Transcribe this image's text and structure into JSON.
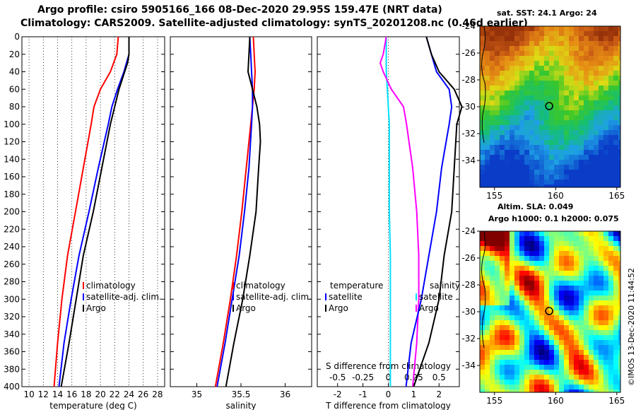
{
  "header": {
    "line1": "Argo profile: csiro 5905166_166 08-Dec-2020 29.95S 159.47E (NRT data)",
    "line2": "Climatology: CARS2009. Satellite-adjusted climatology: synTS_20201208.nc (0.46d earlier)"
  },
  "credit": "©IMOS 13-Dec-2020 11:44:52",
  "colors": {
    "climatology": "#ff0000",
    "satellite": "#0000ff",
    "argo": "#000000",
    "t_diff": "#ff00ff",
    "s_diff": "#00e0ff"
  },
  "maps": {
    "sst": {
      "title": "sat. SST: 24.1 Argo: 24",
      "colormap": "temperature",
      "marker": {
        "lon": 159.47,
        "lat": -29.95
      }
    },
    "sla": {
      "title1": "Altim. SLA: 0.049",
      "title2": "Argo h1000: 0.1 h2000: 0.075",
      "colormap": "jet",
      "marker": {
        "lon": 159.47,
        "lat": -29.95
      }
    },
    "lat_ticks": [
      "-24",
      "-26",
      "-28",
      "-30",
      "-32",
      "-34"
    ],
    "lon_ticks": [
      "155",
      "160",
      "165"
    ]
  },
  "chart_data": [
    {
      "type": "line",
      "name": "temperature",
      "xlabel": "temperature (deg C)",
      "ylabel": "",
      "xlim": [
        9,
        29
      ],
      "ylim": [
        400,
        0
      ],
      "xticks": [
        10,
        12,
        14,
        16,
        18,
        20,
        22,
        24,
        26,
        28
      ],
      "yticks": [
        0,
        20,
        40,
        60,
        80,
        100,
        120,
        140,
        160,
        180,
        200,
        220,
        240,
        260,
        280,
        300,
        320,
        340,
        360,
        380,
        400
      ],
      "legend": [
        "climatology",
        "satellite-adj. clim.",
        "Argo"
      ],
      "series": [
        {
          "name": "climatology",
          "depth": [
            0,
            20,
            40,
            60,
            80,
            100,
            150,
            200,
            250,
            300,
            350,
            400
          ],
          "values": [
            22.5,
            22.3,
            21.4,
            20.0,
            19.1,
            18.7,
            17.6,
            16.5,
            15.4,
            14.6,
            14.0,
            13.5
          ]
        },
        {
          "name": "satellite-adj. clim.",
          "depth": [
            0,
            20,
            40,
            60,
            80,
            100,
            150,
            200,
            250,
            300,
            350,
            400
          ],
          "values": [
            24.0,
            24.0,
            23.3,
            22.4,
            21.6,
            21.1,
            19.7,
            18.4,
            17.0,
            15.9,
            14.9,
            14.2
          ]
        },
        {
          "name": "Argo",
          "depth": [
            0,
            20,
            30,
            40,
            60,
            80,
            100,
            150,
            200,
            250,
            300,
            350,
            400
          ],
          "values": [
            24.0,
            24.0,
            23.8,
            23.4,
            22.6,
            22.0,
            21.4,
            20.2,
            19.0,
            17.6,
            16.6,
            15.6,
            14.5
          ]
        }
      ]
    },
    {
      "type": "line",
      "name": "salinity",
      "xlabel": "salinity",
      "ylabel": "",
      "xlim": [
        34.7,
        36.3
      ],
      "ylim": [
        400,
        0
      ],
      "xticks": [
        35,
        35.5,
        36
      ],
      "legend": [
        "climatology",
        "satellite-adj. clim.",
        "Argo"
      ],
      "series": [
        {
          "name": "climatology",
          "depth": [
            0,
            20,
            40,
            60,
            80,
            100,
            150,
            200,
            250,
            300,
            350,
            400
          ],
          "values": [
            35.64,
            35.65,
            35.66,
            35.65,
            35.63,
            35.61,
            35.56,
            35.51,
            35.45,
            35.38,
            35.3,
            35.21
          ]
        },
        {
          "name": "satellite-adj. clim.",
          "depth": [
            0,
            20,
            40,
            60,
            80,
            100,
            150,
            200,
            250,
            300,
            350,
            400
          ],
          "values": [
            35.6,
            35.61,
            35.62,
            35.63,
            35.63,
            35.62,
            35.59,
            35.54,
            35.48,
            35.4,
            35.32,
            35.23
          ]
        },
        {
          "name": "Argo",
          "depth": [
            0,
            20,
            40,
            60,
            80,
            100,
            120,
            150,
            200,
            250,
            300,
            350,
            400
          ],
          "values": [
            35.6,
            35.59,
            35.58,
            35.63,
            35.68,
            35.71,
            35.72,
            35.7,
            35.67,
            35.6,
            35.52,
            35.42,
            35.33
          ]
        }
      ]
    },
    {
      "type": "line",
      "name": "difference from climatology",
      "xlabel": "T difference from climatology",
      "x2label": "S difference from climatology",
      "xlim": [
        -2.8,
        2.8
      ],
      "ylim": [
        400,
        0
      ],
      "xticks": [
        "-2",
        "-1",
        "0",
        "1",
        "2"
      ],
      "x2ticks": [
        "-0.5",
        "-0.25",
        "0",
        "0.25",
        "0.5"
      ],
      "legend_left_title": "temperature",
      "legend_right_title": "salinity",
      "legend": [
        "satellite",
        "Argo"
      ],
      "series": [
        {
          "name": "T satellite",
          "depth": [
            0,
            20,
            40,
            60,
            80,
            100,
            150,
            200,
            250,
            300,
            350,
            400
          ],
          "values": [
            1.5,
            1.7,
            1.9,
            2.4,
            2.5,
            2.4,
            2.1,
            1.9,
            1.6,
            1.3,
            0.9,
            0.7
          ]
        },
        {
          "name": "T Argo",
          "depth": [
            0,
            20,
            40,
            60,
            80,
            100,
            150,
            200,
            250,
            300,
            350,
            400
          ],
          "values": [
            1.5,
            1.7,
            2.0,
            2.6,
            2.9,
            2.7,
            2.6,
            2.5,
            2.2,
            2.0,
            1.6,
            1.0
          ]
        },
        {
          "name": "S satellite",
          "depth": [
            0,
            20,
            40,
            60,
            80,
            100,
            150,
            200,
            250,
            300,
            350,
            400
          ],
          "values": [
            -0.02,
            -0.02,
            -0.02,
            -0.01,
            0.0,
            0.01,
            0.01,
            0.01,
            0.02,
            0.02,
            0.02,
            0.02
          ]
        },
        {
          "name": "S Argo",
          "depth": [
            0,
            20,
            30,
            40,
            60,
            80,
            100,
            150,
            200,
            250,
            300,
            350,
            400
          ],
          "values": [
            -0.02,
            -0.05,
            -0.08,
            -0.05,
            0.03,
            0.15,
            0.18,
            0.24,
            0.28,
            0.3,
            0.3,
            0.28,
            0.24
          ]
        }
      ]
    }
  ]
}
